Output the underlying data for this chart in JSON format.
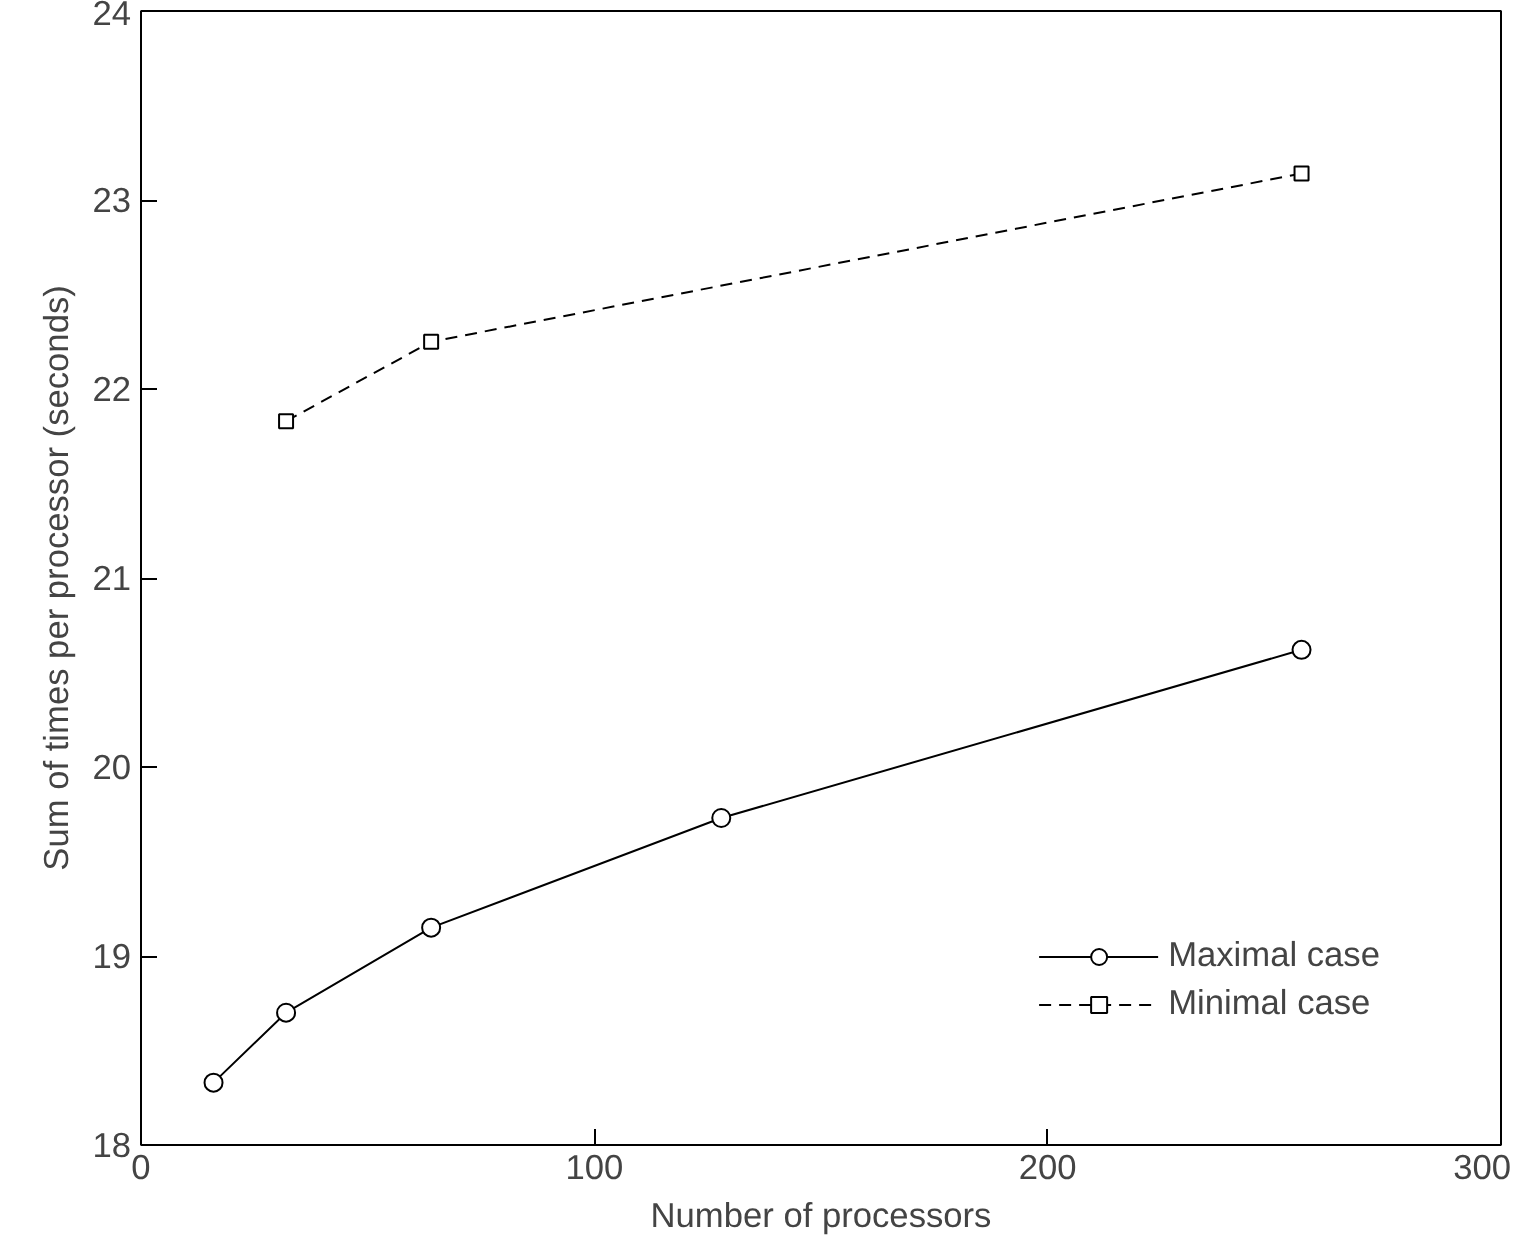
{
  "chart_data": {
    "type": "line",
    "xlabel": "Number of processors",
    "ylabel": "Sum of times per processor (seconds)",
    "xlim": [
      0,
      300
    ],
    "xticks": [
      0,
      100,
      200,
      300
    ],
    "ylim": [
      18,
      24
    ],
    "yticks": [
      18,
      19,
      20,
      21,
      22,
      23,
      24
    ],
    "grid": false,
    "legend": "bottom right",
    "series": [
      {
        "name": "Maximal case",
        "color": "#000000",
        "marker": "circle",
        "line_style": "solid",
        "x": [
          16,
          32,
          64,
          128,
          256
        ],
        "values": [
          18.33,
          18.7,
          19.15,
          19.73,
          20.62
        ]
      },
      {
        "name": "Minimal case",
        "color": "#000000",
        "marker": "square",
        "line_style": "dashed",
        "x": [
          32,
          64,
          256
        ],
        "values": [
          21.83,
          22.25,
          23.14
        ]
      }
    ]
  }
}
